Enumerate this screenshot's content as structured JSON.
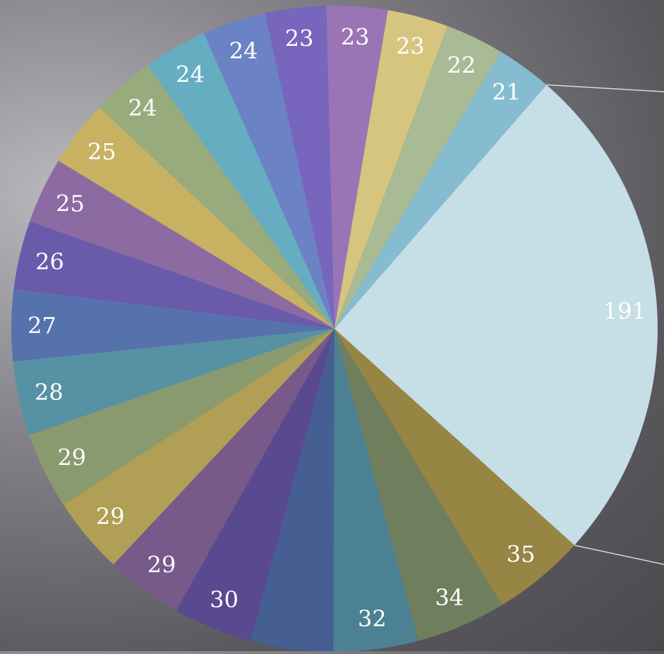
{
  "chart_data": {
    "type": "pie",
    "title": "",
    "values": [
      191,
      35,
      34,
      32,
      31,
      30,
      29,
      29,
      29,
      28,
      27,
      26,
      25,
      25,
      24,
      24,
      24,
      23,
      23,
      23,
      22,
      21
    ],
    "labels": [
      "191",
      "35",
      "34",
      "32",
      "",
      "30",
      "29",
      "29",
      "29",
      "28",
      "27",
      "26",
      "25",
      "25",
      "24",
      "24",
      "24",
      "23",
      "23",
      "23",
      "22",
      "21"
    ],
    "colors": [
      "#c6dee5",
      "#978544",
      "#6f7f5e",
      "#4b8193",
      "#465f93",
      "#59498f",
      "#775a89",
      "#b09f55",
      "#899a6f",
      "#5792a4",
      "#5672ad",
      "#6a5aaa",
      "#8c6aa2",
      "#c8b261",
      "#98ab7c",
      "#66adc2",
      "#6b82c4",
      "#7765be",
      "#9b74b5",
      "#d5c57f",
      "#a8bb95",
      "#85bccf"
    ],
    "label_color": "#ffffff",
    "legend": "none",
    "grid": false
  }
}
